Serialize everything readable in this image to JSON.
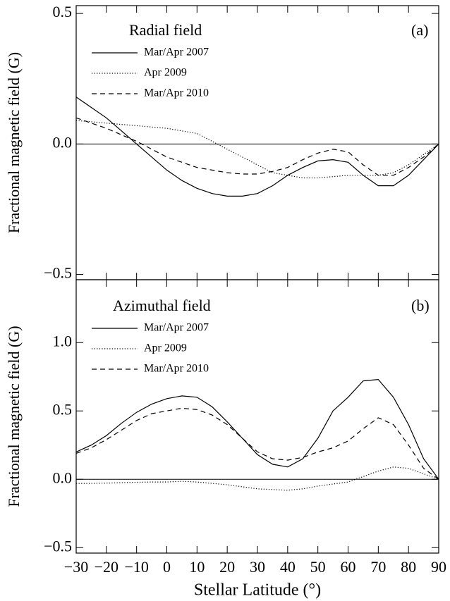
{
  "chart_data": [
    {
      "type": "line",
      "title": "Radial field",
      "panel_label": "(a)",
      "ylabel": "Fractional magnetic field (G)",
      "x": [
        -30,
        -25,
        -20,
        -15,
        -10,
        -5,
        0,
        5,
        10,
        15,
        20,
        25,
        30,
        35,
        40,
        45,
        50,
        55,
        60,
        65,
        70,
        75,
        80,
        85,
        90
      ],
      "xlim": [
        -30,
        90
      ],
      "xticks": [
        {
          "value": -30,
          "label": "−30"
        },
        {
          "value": -20,
          "label": "−20"
        },
        {
          "value": -10,
          "label": "−10"
        },
        0,
        10,
        20,
        30,
        40,
        50,
        60,
        70,
        80,
        90
      ],
      "ylim": [
        -0.52,
        0.53
      ],
      "yticks": [
        {
          "value": -0.5,
          "label": "−0.5"
        },
        {
          "value": 0,
          "label": "0.0"
        },
        {
          "value": 0.5,
          "label": "0.5"
        }
      ],
      "reference_line": 0,
      "grid": false,
      "series": [
        {
          "name": "Mar/Apr 2007",
          "color": "#000000",
          "line_style": "solid",
          "values": [
            0.18,
            0.14,
            0.1,
            0.05,
            0.0,
            -0.05,
            -0.1,
            -0.14,
            -0.17,
            -0.19,
            -0.2,
            -0.2,
            -0.19,
            -0.16,
            -0.12,
            -0.09,
            -0.065,
            -0.06,
            -0.07,
            -0.12,
            -0.16,
            -0.16,
            -0.12,
            -0.06,
            0.0
          ]
        },
        {
          "name": "Apr 2009",
          "color": "#000000",
          "line_style": "dotted",
          "values": [
            0.09,
            0.085,
            0.08,
            0.075,
            0.07,
            0.065,
            0.06,
            0.05,
            0.04,
            0.01,
            -0.02,
            -0.05,
            -0.08,
            -0.11,
            -0.12,
            -0.13,
            -0.13,
            -0.125,
            -0.12,
            -0.12,
            -0.12,
            -0.11,
            -0.08,
            -0.04,
            0.0
          ]
        },
        {
          "name": "Mar/Apr 2010",
          "color": "#000000",
          "line_style": "dashed",
          "values": [
            0.1,
            0.08,
            0.06,
            0.035,
            0.01,
            -0.02,
            -0.05,
            -0.07,
            -0.09,
            -0.1,
            -0.11,
            -0.115,
            -0.115,
            -0.105,
            -0.09,
            -0.06,
            -0.035,
            -0.02,
            -0.03,
            -0.08,
            -0.12,
            -0.12,
            -0.09,
            -0.05,
            0.0
          ]
        }
      ]
    },
    {
      "type": "line",
      "title": "Azimuthal field",
      "panel_label": "(b)",
      "ylabel": "Fractional magnetic field (G)",
      "xlabel": "Stellar Latitude (°)",
      "x": [
        -30,
        -25,
        -20,
        -15,
        -10,
        -5,
        0,
        5,
        10,
        15,
        20,
        25,
        30,
        35,
        40,
        45,
        50,
        55,
        60,
        65,
        70,
        75,
        80,
        85,
        90
      ],
      "xlim": [
        -30,
        90
      ],
      "xticks": [
        {
          "value": -30,
          "label": "−30"
        },
        {
          "value": -20,
          "label": "−20"
        },
        {
          "value": -10,
          "label": "−10"
        },
        0,
        10,
        20,
        30,
        40,
        50,
        60,
        70,
        80,
        90
      ],
      "ylim": [
        -0.54,
        1.46
      ],
      "yticks": [
        {
          "value": -0.5,
          "label": "−0.5"
        },
        {
          "value": 0,
          "label": "0.0"
        },
        {
          "value": 0.5,
          "label": "0.5"
        },
        {
          "value": 1,
          "label": "1.0"
        }
      ],
      "reference_line": 0,
      "grid": false,
      "series": [
        {
          "name": "Mar/Apr 2007",
          "color": "#000000",
          "line_style": "solid",
          "values": [
            0.2,
            0.25,
            0.32,
            0.41,
            0.49,
            0.55,
            0.59,
            0.61,
            0.6,
            0.53,
            0.42,
            0.3,
            0.18,
            0.11,
            0.09,
            0.15,
            0.3,
            0.5,
            0.6,
            0.72,
            0.73,
            0.6,
            0.4,
            0.15,
            0.0
          ]
        },
        {
          "name": "Apr 2009",
          "color": "#000000",
          "line_style": "dotted",
          "values": [
            -0.03,
            -0.03,
            -0.028,
            -0.025,
            -0.022,
            -0.02,
            -0.02,
            -0.015,
            -0.02,
            -0.03,
            -0.04,
            -0.055,
            -0.07,
            -0.075,
            -0.08,
            -0.07,
            -0.05,
            -0.035,
            -0.02,
            0.02,
            0.06,
            0.09,
            0.08,
            0.04,
            0.0
          ]
        },
        {
          "name": "Mar/Apr 2010",
          "color": "#000000",
          "line_style": "dashed",
          "values": [
            0.19,
            0.23,
            0.29,
            0.36,
            0.43,
            0.48,
            0.5,
            0.52,
            0.51,
            0.47,
            0.4,
            0.3,
            0.2,
            0.15,
            0.14,
            0.16,
            0.2,
            0.23,
            0.28,
            0.37,
            0.45,
            0.4,
            0.25,
            0.08,
            0.0
          ]
        }
      ]
    }
  ]
}
